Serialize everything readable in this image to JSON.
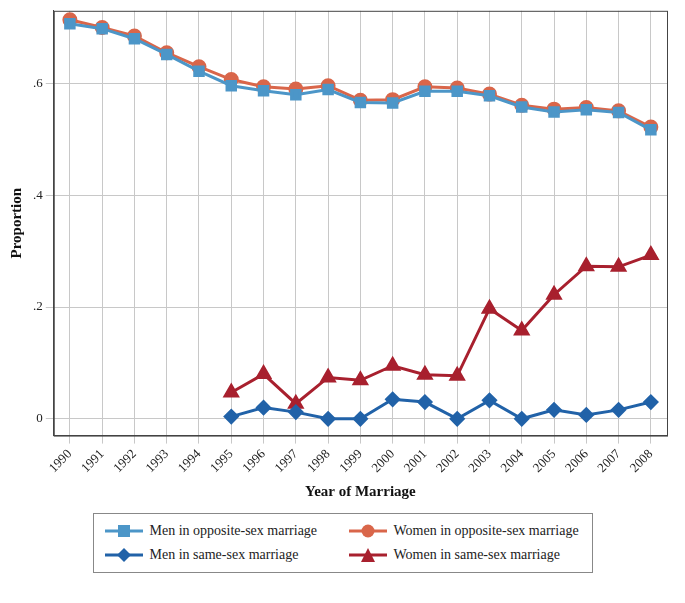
{
  "chart_data": {
    "type": "line",
    "x_label": "Year of Marriage",
    "y_label": "Proportion",
    "categories": [
      "1990",
      "1991",
      "1992",
      "1993",
      "1994",
      "1995",
      "1996",
      "1997",
      "1998",
      "1999",
      "2000",
      "2001",
      "2002",
      "2003",
      "2004",
      "2005",
      "2006",
      "2007",
      "2008"
    ],
    "ylim": [
      -0.03,
      0.73
    ],
    "yticks": [
      0,
      {
        "value": 0.2,
        "label": ".2"
      },
      {
        "value": 0.4,
        "label": ".4"
      },
      {
        "value": 0.6,
        "label": ".6"
      }
    ],
    "grid": true,
    "legend": "bottom",
    "series": [
      {
        "name": "Men in opposite-sex marriage",
        "color": "#4c96c8",
        "marker": "square",
        "values": [
          0.707,
          0.698,
          0.68,
          0.652,
          0.622,
          0.596,
          0.587,
          0.58,
          0.589,
          0.566,
          0.565,
          0.586,
          0.586,
          0.578,
          0.558,
          0.549,
          0.553,
          0.548,
          0.517
        ]
      },
      {
        "name": "Women in opposite-sex marriage",
        "color": "#d9664a",
        "marker": "circle",
        "values": [
          0.714,
          0.7,
          0.685,
          0.655,
          0.63,
          0.607,
          0.594,
          0.59,
          0.596,
          0.57,
          0.571,
          0.594,
          0.592,
          0.581,
          0.561,
          0.554,
          0.557,
          0.551,
          0.522
        ]
      },
      {
        "name": "Men in same-sex marriage",
        "color": "#2162a8",
        "marker": "diamond",
        "values": [
          null,
          null,
          null,
          null,
          null,
          0.004,
          0.02,
          0.012,
          0.0,
          0.0,
          0.035,
          0.03,
          0.0,
          0.033,
          0.0,
          0.016,
          0.007,
          0.016,
          0.03
        ]
      },
      {
        "name": "Women in same-sex marriage",
        "color": "#a8202e",
        "marker": "triangle",
        "values": [
          null,
          null,
          null,
          null,
          null,
          0.047,
          0.08,
          0.027,
          0.074,
          0.069,
          0.095,
          0.079,
          0.077,
          0.197,
          0.158,
          0.222,
          0.273,
          0.272,
          0.293
        ]
      }
    ]
  }
}
